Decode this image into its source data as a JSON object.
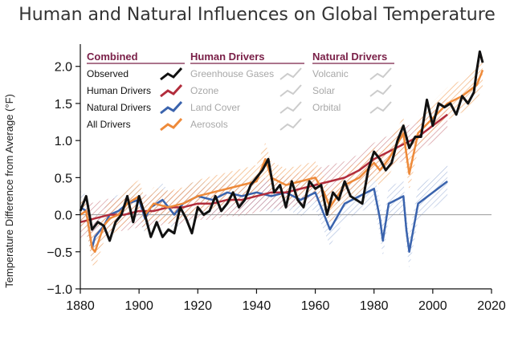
{
  "chart_data": {
    "type": "line",
    "title": "Human and Natural Influences on Global Temperature",
    "ylabel": "Temperature Difference from Average (°F)",
    "xlabel": "",
    "xlim": [
      1880,
      2020
    ],
    "ylim": [
      -1.0,
      2.3
    ],
    "xticks": [
      1880,
      1900,
      1920,
      1940,
      1960,
      1980,
      2000,
      2020
    ],
    "yticks": [
      -1.0,
      -0.5,
      0.0,
      0.5,
      1.0,
      1.5,
      2.0
    ],
    "ytick_labels": [
      "−1.0",
      "−0.5",
      "0.0",
      "0.5",
      "1.0",
      "1.5",
      "2.0"
    ],
    "zero_line": true,
    "legend": {
      "groups": [
        {
          "heading": "Combined",
          "items": [
            {
              "label": "Observed",
              "color": "#111111",
              "active": true
            },
            {
              "label": "Human Drivers",
              "color": "#b22d3c",
              "active": true
            },
            {
              "label": "Natural Drivers",
              "color": "#3a63ad",
              "active": true
            },
            {
              "label": "All Drivers",
              "color": "#ee8a3a",
              "active": true
            }
          ]
        },
        {
          "heading": "Human Drivers",
          "items": [
            {
              "label": "Greenhouse Gases",
              "color": "#cccccc",
              "active": false
            },
            {
              "label": "Ozone",
              "color": "#cccccc",
              "active": false
            },
            {
              "label": "Land Cover",
              "color": "#cccccc",
              "active": false
            },
            {
              "label": "Aerosols",
              "color": "#cccccc",
              "active": false
            }
          ]
        },
        {
          "heading": "Natural Drivers",
          "items": [
            {
              "label": "Volcanic",
              "color": "#cccccc",
              "active": false
            },
            {
              "label": "Solar",
              "color": "#cccccc",
              "active": false
            },
            {
              "label": "Orbital",
              "color": "#cccccc",
              "active": false
            }
          ]
        }
      ]
    },
    "series": [
      {
        "name": "Observed",
        "color": "#111111",
        "x": [
          1880,
          1882,
          1884,
          1886,
          1888,
          1890,
          1892,
          1894,
          1896,
          1898,
          1900,
          1902,
          1904,
          1906,
          1908,
          1910,
          1912,
          1914,
          1916,
          1918,
          1920,
          1922,
          1924,
          1926,
          1928,
          1930,
          1932,
          1934,
          1936,
          1938,
          1940,
          1942,
          1944,
          1946,
          1948,
          1950,
          1952,
          1954,
          1956,
          1958,
          1960,
          1962,
          1964,
          1966,
          1968,
          1970,
          1972,
          1974,
          1976,
          1978,
          1980,
          1982,
          1984,
          1986,
          1988,
          1990,
          1992,
          1994,
          1996,
          1998,
          2000,
          2002,
          2004,
          2006,
          2008,
          2010,
          2012,
          2014,
          2015,
          2016,
          2017
        ],
        "y": [
          0.05,
          0.25,
          -0.2,
          -0.1,
          -0.15,
          -0.35,
          -0.1,
          0.0,
          0.25,
          -0.1,
          0.25,
          0.0,
          -0.3,
          -0.1,
          -0.3,
          -0.2,
          -0.25,
          0.1,
          -0.05,
          -0.25,
          0.1,
          0.0,
          0.05,
          0.25,
          0.05,
          0.15,
          0.3,
          0.1,
          0.2,
          0.4,
          0.5,
          0.6,
          0.75,
          0.3,
          0.4,
          0.1,
          0.45,
          0.2,
          0.1,
          0.45,
          0.35,
          0.4,
          0.0,
          0.3,
          0.2,
          0.45,
          0.25,
          0.2,
          0.15,
          0.6,
          0.85,
          0.75,
          0.6,
          0.7,
          1.0,
          1.2,
          0.9,
          1.05,
          1.05,
          1.55,
          1.2,
          1.5,
          1.45,
          1.5,
          1.35,
          1.6,
          1.5,
          1.65,
          1.95,
          2.2,
          2.05
        ]
      },
      {
        "name": "Human Drivers",
        "color": "#b22d3c",
        "x": [
          1880,
          1885,
          1890,
          1895,
          1900,
          1905,
          1910,
          1915,
          1920,
          1925,
          1930,
          1935,
          1940,
          1945,
          1950,
          1955,
          1960,
          1965,
          1970,
          1975,
          1980,
          1985,
          1990,
          1995,
          2000,
          2005
        ],
        "y": [
          -0.1,
          -0.05,
          0.0,
          0.0,
          0.05,
          0.05,
          0.1,
          0.1,
          0.15,
          0.15,
          0.2,
          0.2,
          0.25,
          0.3,
          0.3,
          0.35,
          0.4,
          0.45,
          0.5,
          0.6,
          0.75,
          0.85,
          0.95,
          1.05,
          1.2,
          1.35
        ]
      },
      {
        "name": "Natural Drivers",
        "color": "#3a63ad",
        "x": [
          1880,
          1882,
          1884,
          1885,
          1888,
          1890,
          1893,
          1896,
          1900,
          1902,
          1904,
          1908,
          1912,
          1915,
          1920,
          1925,
          1930,
          1935,
          1940,
          1945,
          1950,
          1955,
          1960,
          1963,
          1965,
          1970,
          1975,
          1980,
          1982,
          1983,
          1985,
          1990,
          1991,
          1992,
          1995,
          2000,
          2005
        ],
        "y": [
          0.1,
          0.05,
          -0.45,
          -0.3,
          -0.15,
          0.0,
          0.05,
          0.15,
          0.2,
          -0.05,
          0.1,
          0.2,
          0.0,
          0.15,
          0.25,
          0.2,
          0.3,
          0.25,
          0.3,
          0.25,
          0.3,
          0.2,
          0.3,
          0.0,
          -0.2,
          0.15,
          0.25,
          0.35,
          -0.05,
          -0.35,
          0.15,
          0.25,
          -0.2,
          -0.5,
          0.15,
          0.3,
          0.45
        ]
      },
      {
        "name": "All Drivers",
        "color": "#ee8a3a",
        "x": [
          1880,
          1882,
          1884,
          1885,
          1888,
          1890,
          1893,
          1896,
          1900,
          1902,
          1905,
          1910,
          1915,
          1920,
          1925,
          1930,
          1935,
          1940,
          1943,
          1945,
          1950,
          1955,
          1960,
          1963,
          1965,
          1970,
          1975,
          1980,
          1982,
          1985,
          1990,
          1992,
          1995,
          2000,
          2005,
          2010,
          2015,
          2017
        ],
        "y": [
          0.0,
          0.05,
          -0.45,
          -0.5,
          -0.15,
          -0.05,
          0.0,
          0.15,
          0.25,
          0.0,
          0.15,
          0.1,
          0.15,
          0.25,
          0.3,
          0.35,
          0.4,
          0.45,
          0.75,
          0.5,
          0.4,
          0.45,
          0.5,
          0.3,
          0.1,
          0.4,
          0.5,
          0.7,
          0.6,
          0.75,
          1.1,
          0.55,
          1.1,
          1.3,
          1.5,
          1.6,
          1.75,
          1.95
        ]
      }
    ]
  }
}
